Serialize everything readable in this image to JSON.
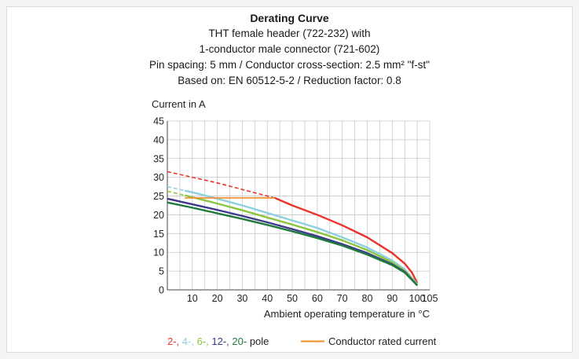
{
  "chart_data": {
    "type": "line",
    "title": "Derating Curve",
    "subtitle_lines": [
      "THT female header  (722-232) with",
      "1-conductor male connector (721-602)",
      "Pin spacing: 5 mm / Conductor cross-section: 2.5 mm² \"f-st\"",
      "Based on: EN 60512-5-2 / Reduction factor: 0.8"
    ],
    "ylabel": "Current in A",
    "xlabel": "Ambient operating temperature in °C",
    "xlim": [
      0,
      105
    ],
    "ylim": [
      0,
      45
    ],
    "x_ticks": [
      10,
      20,
      30,
      40,
      50,
      60,
      70,
      80,
      90,
      100,
      105
    ],
    "y_ticks": [
      0,
      5,
      10,
      15,
      20,
      25,
      30,
      35,
      40,
      45
    ],
    "grid": true,
    "legend": {
      "pole_items": [
        "2-",
        "4-",
        "6-",
        "12-",
        "20-"
      ],
      "pole_suffix": "pole",
      "rated_label": "Conductor rated current"
    },
    "series": [
      {
        "name": "2-",
        "color": "#e8342a",
        "x": [
          0,
          20,
          40,
          43,
          50,
          60,
          70,
          80,
          90,
          95,
          98,
          100
        ],
        "y": [
          31.5,
          28.5,
          25.0,
          24.5,
          22.5,
          20.0,
          17.2,
          14.0,
          9.8,
          7.0,
          4.5,
          1.8
        ],
        "dashed_until": 43
      },
      {
        "name": "4-",
        "color": "#8ecfe0",
        "x": [
          0,
          10,
          20,
          30,
          40,
          50,
          60,
          70,
          80,
          90,
          95,
          100
        ],
        "y": [
          27.5,
          26.0,
          24.3,
          22.5,
          20.5,
          18.5,
          16.5,
          14.0,
          11.3,
          7.8,
          5.5,
          1.5
        ],
        "dashed_until": 7
      },
      {
        "name": "6-",
        "color": "#8cc63e",
        "x": [
          0,
          10,
          20,
          30,
          40,
          50,
          60,
          70,
          80,
          90,
          95,
          100
        ],
        "y": [
          26.3,
          24.7,
          23.0,
          21.2,
          19.3,
          17.4,
          15.4,
          13.2,
          10.6,
          7.3,
          5.1,
          1.3
        ],
        "dashed_until": 7
      },
      {
        "name": "12-",
        "color": "#3d3a8a",
        "x": [
          0,
          10,
          20,
          30,
          40,
          50,
          60,
          70,
          80,
          90,
          95,
          100
        ],
        "y": [
          24.3,
          22.8,
          21.3,
          19.7,
          18.0,
          16.2,
          14.3,
          12.2,
          9.8,
          6.8,
          4.8,
          1.2
        ],
        "dashed_until": 0
      },
      {
        "name": "20-",
        "color": "#1f7a3e",
        "x": [
          0,
          10,
          20,
          30,
          40,
          50,
          60,
          70,
          80,
          90,
          95,
          100
        ],
        "y": [
          23.3,
          21.9,
          20.4,
          18.9,
          17.3,
          15.6,
          13.8,
          11.8,
          9.4,
          6.6,
          4.6,
          1.2
        ],
        "dashed_until": 0
      }
    ],
    "rated_current": {
      "color": "#f08a24",
      "x": [
        7,
        43
      ],
      "y": 24.5
    }
  }
}
